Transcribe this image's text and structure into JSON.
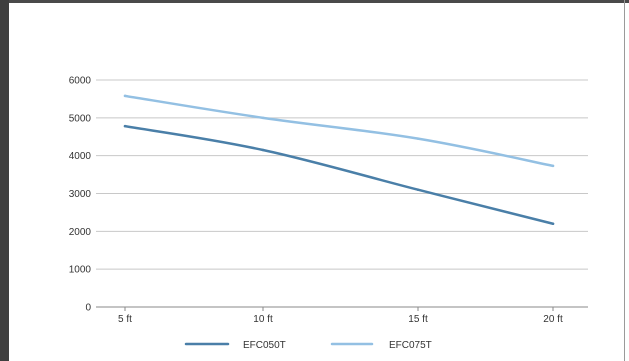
{
  "chart_data": {
    "type": "line",
    "title": "",
    "xlabel": "",
    "ylabel": "",
    "categories": [
      "5 ft",
      "10 ft",
      "15 ft",
      "20 ft"
    ],
    "ylim": [
      0,
      6000
    ],
    "yticks": [
      "0",
      "1000",
      "2000",
      "3000",
      "4000",
      "5000",
      "6000"
    ],
    "grid": "horizontal",
    "legend_position": "bottom",
    "series": [
      {
        "name": "EFC050T",
        "color": "#4a7fa8",
        "values": [
          4780,
          4150,
          3100,
          2200
        ]
      },
      {
        "name": "EFC075T",
        "color": "#93c0e3",
        "values": [
          5580,
          5000,
          4450,
          3730
        ]
      }
    ]
  }
}
